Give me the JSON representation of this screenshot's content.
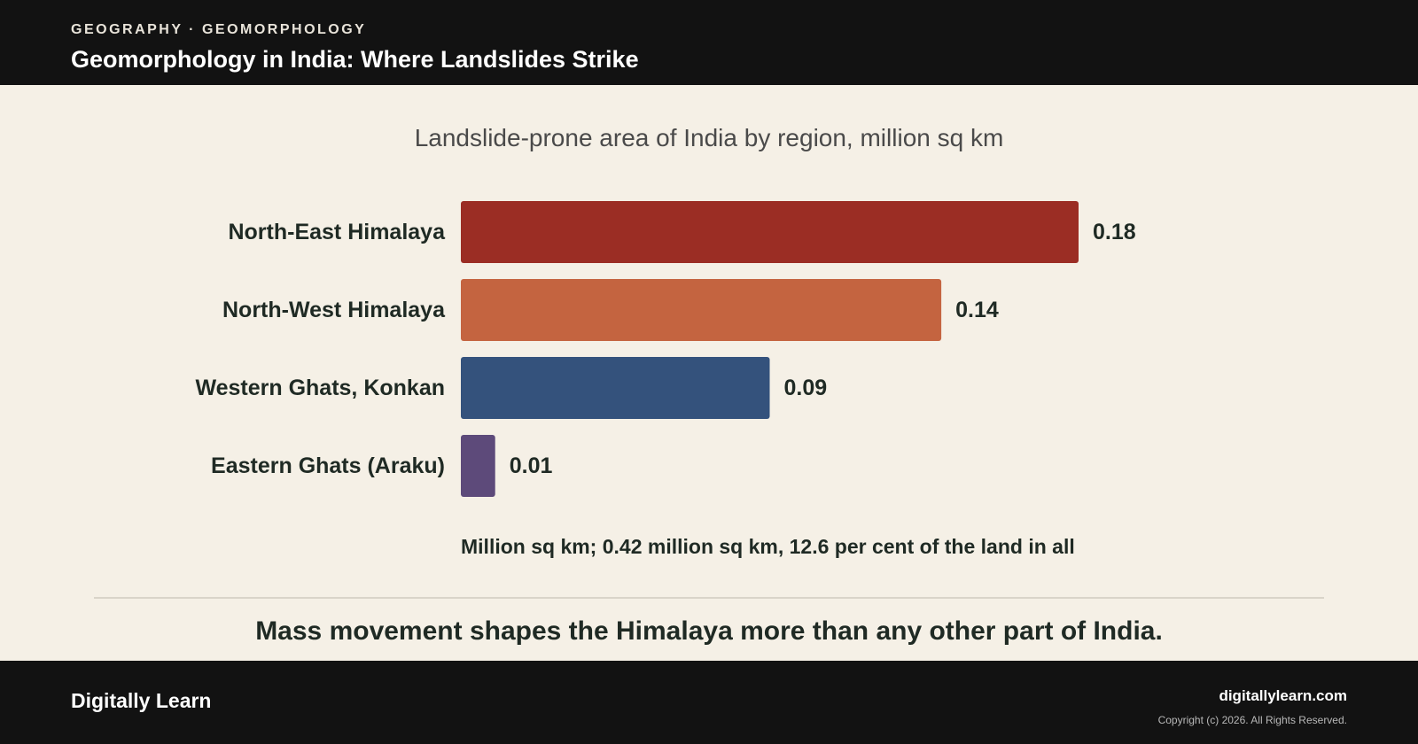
{
  "header": {
    "kicker": "GEOGRAPHY · GEOMORPHOLOGY",
    "title": "Geomorphology in India: Where Landslides Strike"
  },
  "chart_data": {
    "type": "bar",
    "orientation": "horizontal",
    "title": "Landslide-prone area of India by region, million sq km",
    "categories": [
      "North-East Himalaya",
      "North-West Himalaya",
      "Western Ghats, Konkan",
      "Eastern Ghats (Araku)"
    ],
    "values": [
      0.18,
      0.14,
      0.09,
      0.01
    ],
    "value_labels": [
      "0.18",
      "0.14",
      "0.09",
      "0.01"
    ],
    "colors": [
      "#9b2d24",
      "#c46440",
      "#34527c",
      "#5d4a7a"
    ],
    "xlim": [
      0,
      0.18
    ],
    "grid": false,
    "legend": "none",
    "note": "Million sq km; 0.42 million sq km, 12.6 per cent of the land in all"
  },
  "takeaway": "Mass movement shapes the Himalaya more than any other part of India.",
  "footer": {
    "brand": "Digitally Learn",
    "site": "digitallylearn.com",
    "copyright": "Copyright (c) 2026. All Rights Reserved."
  }
}
